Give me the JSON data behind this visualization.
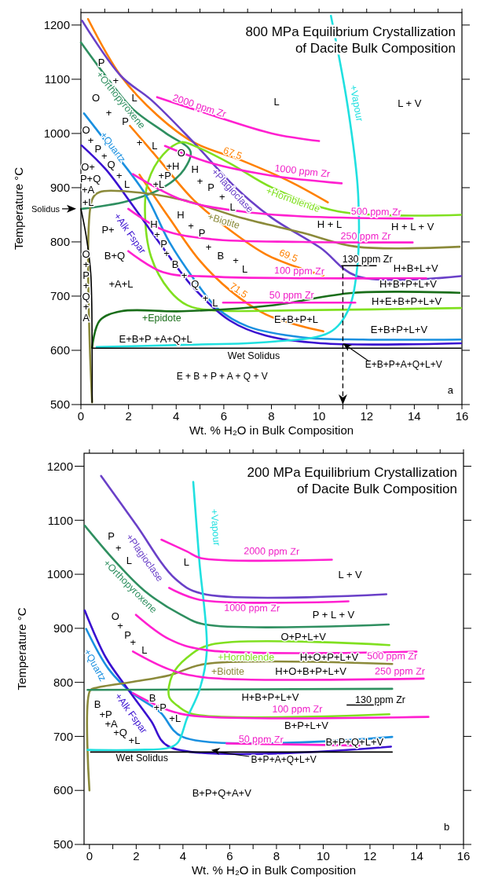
{
  "chart_data": [
    {
      "type": "line",
      "title": "800 MPa Equilibrium Crystallization\nof Dacite Bulk Composition",
      "xlabel": "Wt. % H₂O in Bulk Composition",
      "ylabel": "Temperature  °C",
      "xlim": [
        0,
        16
      ],
      "ylim": [
        500,
        1223
      ],
      "xticks": [
        0,
        {
          "value": 1,
          "label": null
        },
        2,
        {
          "value": 3,
          "label": null
        },
        4,
        {
          "value": 5,
          "label": null
        },
        6,
        {
          "value": 7,
          "label": null
        },
        8,
        {
          "value": 9,
          "label": null
        },
        10,
        {
          "value": 11,
          "label": null
        },
        12,
        {
          "value": 13,
          "label": null
        },
        14,
        {
          "value": 15,
          "label": null
        },
        16
      ],
      "yticks": [
        500,
        600,
        700,
        800,
        900,
        1000,
        1100,
        1200
      ],
      "series": [
        {
          "name": "67.5",
          "color": "#ff8000",
          "x": [
            0.3,
            1.68,
            3.2,
            4.72,
            6.76,
            8.79,
            10.37
          ],
          "values": [
            1211,
            1106,
            1034,
            984,
            950,
            911,
            873
          ]
        },
        {
          "name": "69.5",
          "color": "#ff8000",
          "x": [
            2.06,
            3.2,
            4.72,
            6.25,
            7.77,
            9.3,
            10.18
          ],
          "values": [
            1014,
            956,
            878,
            822,
            777,
            750,
            738
          ]
        },
        {
          "name": "71.5",
          "color": "#ff8000",
          "x": [
            2.46,
            3.71,
            4.98,
            6.25,
            7.77,
            9.3,
            10.18
          ],
          "values": [
            924,
            844,
            766,
            711,
            666,
            644,
            635
          ]
        },
        {
          "name": "+Plagioclase",
          "color": "#6a40c8",
          "x": [
            0.05,
            1.68,
            2.95,
            4.72,
            6.5,
            8.03,
            10.06,
            11.58,
            15.96
          ],
          "values": [
            1208,
            1106,
            1062,
            984,
            900,
            844,
            789,
            737,
            737
          ]
        },
        {
          "name": "+Orthopyroxene",
          "color": "#2f8f60",
          "x": [
            0,
            1.04,
            2.18,
            3.58,
            4.6,
            4.34,
            3.45,
            1.93,
            0.03
          ],
          "values": [
            1168,
            1106,
            1045,
            1000,
            967,
            934,
            900,
            875,
            861
          ]
        },
        {
          "name": "+Hornblende",
          "color": "#80e020",
          "x": [
            15.96,
            10.82,
            8.03,
            6.25,
            4.72,
            4.22,
            3.45,
            2.82,
            2.69,
            2.95,
            3.71,
            4.47,
            5.49,
            9.3,
            15.96
          ],
          "values": [
            850,
            856,
            900,
            945,
            978,
            984,
            961,
            911,
            856,
            772,
            711,
            683,
            674,
            674,
            678
          ]
        },
        {
          "name": "+Quartz",
          "color": "#1a90e0",
          "x": [
            0.13,
            1.17,
            2.69,
            3.71,
            4.72,
            5.74,
            7.01,
            9.3,
            11.83,
            15.96
          ],
          "values": [
            1037,
            978,
            889,
            800,
            733,
            677,
            644,
            624,
            620,
            620
          ]
        },
        {
          "name": "+Alk Fspar",
          "color": "#3a10d0",
          "x": [
            0.03,
            1.04,
            2.18,
            3.45,
            4.72,
            6.25,
            7.77,
            10.06,
            15.96
          ],
          "values": [
            978,
            934,
            867,
            789,
            716,
            655,
            627,
            613,
            613
          ]
        },
        {
          "name": "+Biotite",
          "color": "#8b8a3a",
          "x": [
            0.47,
            0.47,
            0.79,
            1.93,
            4.22,
            6.76,
            9.3,
            11.58,
            15.9
          ],
          "values": [
            504,
            878,
            892,
            893,
            878,
            844,
            817,
            791,
            791
          ]
        },
        {
          "name": "+Epidote",
          "color": "#1a6e1a",
          "x": [
            0.47,
            0.79,
            1.68,
            4.22,
            8.03,
            11.45,
            15.9
          ],
          "values": [
            605,
            655,
            672,
            672,
            683,
            706,
            706
          ]
        },
        {
          "name": "+Vapour",
          "color": "#20e0e0",
          "x": [
            10.5,
            11.2,
            11.64,
            11.58,
            11.2,
            10.44,
            8.03,
            4.22,
            0.66
          ],
          "values": [
            1217,
            1051,
            889,
            744,
            672,
            633,
            616,
            610,
            606
          ]
        },
        {
          "color": "#000000",
          "x": [
            0,
            0.22,
            0.41,
            0.47,
            0.47
          ],
          "values": [
            861,
            811,
            744,
            605,
            504
          ]
        },
        {
          "name": "Wet Solidus",
          "color": "#000000",
          "x": [
            0.47,
            15.96
          ],
          "values": [
            604,
            604
          ]
        },
        {
          "name": "2000 ppm Zr",
          "color": "#ff20d0",
          "x": [
            3.2,
            5.49,
            8.03,
            10
          ],
          "values": [
            1067,
            1034,
            1000,
            986
          ]
        },
        {
          "name": "1000 ppm Zr",
          "color": "#ff20d0",
          "x": [
            3.53,
            5.49,
            8.03,
            10.95
          ],
          "values": [
            977,
            945,
            922,
            908
          ]
        },
        {
          "name": "500 ppm Zr",
          "color": "#ff20d0",
          "x": [
            2.18,
            4.22,
            6.76,
            9.3,
            13.93
          ],
          "values": [
            925,
            878,
            856,
            847,
            843
          ]
        },
        {
          "name": "250 ppm Zr",
          "color": "#ff20d0",
          "x": [
            1.99,
            3.45,
            5.49,
            9.3,
            13.93
          ],
          "values": [
            861,
            822,
            805,
            800,
            799
          ]
        },
        {
          "name": "100 ppm Zr",
          "color": "#ff20d0",
          "x": [
            1.99,
            3.45,
            5.49,
            9.3,
            14.5
          ],
          "values": [
            783,
            744,
            736,
            733,
            733
          ]
        },
        {
          "name": "50 ppm Zr",
          "color": "#ff20d0",
          "x": [
            5.97,
            11.52
          ],
          "values": [
            688,
            688
          ]
        },
        {
          "name": "130 ppm Zr",
          "color": "#000000",
          "x": [
            10.95,
            12.4
          ],
          "values": [
            756,
            756
          ]
        }
      ],
      "annotations": [
        "Solidus",
        "P",
        "+",
        "O",
        "L",
        "+",
        "P",
        "+",
        "L",
        "O",
        "+",
        "P",
        "+",
        "Q",
        "+",
        "L",
        "O+",
        "P+Q",
        "+A",
        "+L",
        "O",
        "+H",
        "+P",
        "+L",
        "H",
        "+",
        "P",
        "+",
        "L",
        "H",
        "+",
        "P",
        "+",
        "B",
        "+",
        "L",
        "H",
        "+",
        "P",
        "+",
        "B",
        "+",
        "Q",
        "+",
        "L",
        "P+",
        "B+Q",
        "+A+L",
        "O",
        "+",
        "P",
        "+",
        "Q",
        "+",
        "A",
        "L",
        "L + V",
        "H + L",
        "H + L + V",
        "H+B+L+V",
        "H+B+P+L+V",
        "H+E+B+P+L+V",
        "E+B+P+L+V",
        "E+B+P+L",
        "E+B+P +A+Q+L",
        "E + B + P + A + Q + V",
        {
          "text": "E+B+P+A+Q+L+V",
          "x": 11,
          "y": 613
        },
        "a"
      ]
    },
    {
      "type": "line",
      "title": "200 MPa Equilibrium Crystallization\nof Dacite Bulk Composition",
      "xlabel": "Wt. % H₂O in Bulk Composition",
      "ylabel": "Temperature  °C",
      "xlim": [
        -0.23,
        16
      ],
      "ylim": [
        500,
        1224
      ],
      "xticks": [
        0,
        {
          "value": 1,
          "label": null
        },
        2,
        {
          "value": 3,
          "label": null
        },
        4,
        {
          "value": 5,
          "label": null
        },
        6,
        {
          "value": 7,
          "label": null
        },
        8,
        {
          "value": 9,
          "label": null
        },
        10,
        {
          "value": 11,
          "label": null
        },
        12,
        {
          "value": 13,
          "label": null
        },
        14,
        {
          "value": 15,
          "label": null
        },
        16
      ],
      "yticks": [
        500,
        600,
        700,
        800,
        900,
        1000,
        1100,
        1200
      ],
      "series": [
        {
          "name": "+Plagioclase",
          "color": "#6a40c8",
          "x": [
            0.5,
            1.99,
            3.66,
            4.83,
            12.7
          ],
          "values": [
            1182,
            1092,
            992,
            964,
            963
          ]
        },
        {
          "name": "+Orthopyroxene",
          "color": "#2f8f60",
          "x": [
            -0.2,
            1.08,
            2.37,
            3.92,
            4.95,
            12.8
          ],
          "values": [
            1090,
            1025,
            969,
            925,
            907,
            907
          ]
        },
        {
          "name": "+Quartz",
          "color": "#1a90e0",
          "x": [
            -0.14,
            0.83,
            1.86,
            3.02,
            3.99,
            12.95
          ],
          "values": [
            899,
            824,
            779,
            745,
            699,
            699
          ]
        },
        {
          "name": "+Alk Fspar",
          "color": "#3a10d0",
          "x": [
            -0.2,
            0.7,
            1.6,
            2.63,
            3.41,
            12.9
          ],
          "values": [
            933,
            846,
            790,
            729,
            681,
            681
          ]
        },
        {
          "name": "+Biotite",
          "color": "#8b8a3a",
          "x": [
            0,
            0.03,
            0.31,
            1.86,
            3.41,
            4.95,
            12.95
          ],
          "values": [
            600,
            785,
            790,
            801,
            813,
            834,
            834
          ]
        },
        {
          "color": "#2f8f60",
          "x": [
            -0.08,
            12.95
          ],
          "values": [
            786,
            788
          ]
        },
        {
          "name": "+Hornblende",
          "color": "#80e020",
          "x": [
            12.83,
            5.21,
            4.18,
            3.54,
            3.41,
            3.79,
            4.44,
            12.83
          ],
          "values": [
            869,
            870,
            846,
            813,
            773,
            756,
            741,
            741
          ]
        },
        {
          "name": "+Vapour",
          "color": "#20e0e0",
          "x": [
            4.44,
            4.7,
            5.02,
            4.7,
            4.18,
            3.79,
            3.41,
            1.99,
            -0.08
          ],
          "values": [
            1171,
            1025,
            857,
            785,
            734,
            689,
            679,
            675,
            675
          ]
        },
        {
          "name": "Wet Solidus",
          "color": "#000000",
          "x": [
            0.05,
            12.95
          ],
          "values": [
            671,
            671
          ]
        },
        {
          "name": "2000 ppm Zr",
          "color": "#ff20d0",
          "x": [
            3.08,
            4.18,
            4.76,
            10.37
          ],
          "values": [
            1064,
            1042,
            1030,
            1027
          ]
        },
        {
          "name": "1000 ppm Zr",
          "color": "#ff20d0",
          "x": [
            3.41,
            4.7,
            11.08
          ],
          "values": [
            975,
            953,
            950
          ]
        },
        {
          "name": "500 ppm Zr",
          "color": "#ff20d0",
          "x": [
            1.99,
            3.41,
            4.95,
            13.99
          ],
          "values": [
            925,
            880,
            860,
            857
          ]
        },
        {
          "name": "250 ppm Zr",
          "color": "#ff20d0",
          "x": [
            1.86,
            3.41,
            4.95,
            14.3
          ],
          "values": [
            857,
            824,
            809,
            807
          ]
        },
        {
          "name": "100 ppm Zr",
          "color": "#ff20d0",
          "x": [
            1.86,
            3.41,
            4.7,
            14.5
          ],
          "values": [
            780,
            748,
            737,
            736
          ]
        },
        {
          "name": "50 ppm Zr",
          "color": "#ff20d0",
          "x": [
            5.86,
            11.54
          ],
          "values": [
            687,
            683
          ]
        },
        {
          "name": "130 ppm Zr",
          "color": "#000000",
          "x": [
            11.02,
            12.44
          ],
          "values": [
            758,
            758
          ]
        }
      ],
      "annotations": [
        "P",
        "+",
        "L",
        "L",
        "L + V",
        "P + L + V",
        "O",
        "+",
        "P",
        "+",
        "L",
        "O+P+L+V",
        "H+O+P+L+V",
        "H+O+B+P+L+V",
        "H+B+P+L+V",
        "B+P+L+V",
        "B+P+Q+L+V",
        {
          "text": "B+P+A+Q+L+V",
          "x": 5.21,
          "y": 675
        },
        "B+P+Q+A+V",
        "b",
        "B",
        "+P",
        "+A",
        "+Q",
        "+L",
        "B",
        "+P",
        "+L"
      ]
    }
  ]
}
